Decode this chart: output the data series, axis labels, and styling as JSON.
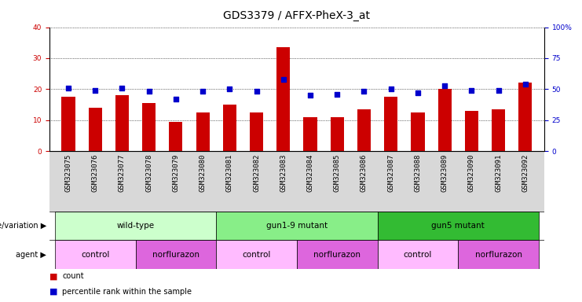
{
  "title": "GDS3379 / AFFX-PheX-3_at",
  "samples": [
    "GSM323075",
    "GSM323076",
    "GSM323077",
    "GSM323078",
    "GSM323079",
    "GSM323080",
    "GSM323081",
    "GSM323082",
    "GSM323083",
    "GSM323084",
    "GSM323085",
    "GSM323086",
    "GSM323087",
    "GSM323088",
    "GSM323089",
    "GSM323090",
    "GSM323091",
    "GSM323092"
  ],
  "counts": [
    17.5,
    14.0,
    18.0,
    15.5,
    9.5,
    12.5,
    15.0,
    12.5,
    33.5,
    11.0,
    11.0,
    13.5,
    17.5,
    12.5,
    20.0,
    13.0,
    13.5,
    22.0
  ],
  "percentile": [
    51,
    49,
    51,
    48,
    42,
    48,
    50,
    48,
    58,
    45,
    46,
    48,
    50,
    47,
    53,
    49,
    49,
    54
  ],
  "ylim_left": [
    0,
    40
  ],
  "ylim_right": [
    0,
    100
  ],
  "yticks_left": [
    0,
    10,
    20,
    30,
    40
  ],
  "yticks_right": [
    0,
    25,
    50,
    75,
    100
  ],
  "bar_color": "#cc0000",
  "dot_color": "#0000cc",
  "grid_color": "#000000",
  "genotype_groups": [
    {
      "label": "wild-type",
      "start": 0,
      "end": 6,
      "color": "#ccffcc"
    },
    {
      "label": "gun1-9 mutant",
      "start": 6,
      "end": 12,
      "color": "#88ee88"
    },
    {
      "label": "gun5 mutant",
      "start": 12,
      "end": 18,
      "color": "#33bb33"
    }
  ],
  "agent_groups": [
    {
      "label": "control",
      "start": 0,
      "end": 3,
      "color": "#ffbbff"
    },
    {
      "label": "norflurazon",
      "start": 3,
      "end": 6,
      "color": "#dd66dd"
    },
    {
      "label": "control",
      "start": 6,
      "end": 9,
      "color": "#ffbbff"
    },
    {
      "label": "norflurazon",
      "start": 9,
      "end": 12,
      "color": "#dd66dd"
    },
    {
      "label": "control",
      "start": 12,
      "end": 15,
      "color": "#ffbbff"
    },
    {
      "label": "norflurazon",
      "start": 15,
      "end": 18,
      "color": "#dd66dd"
    }
  ],
  "legend_count_color": "#cc0000",
  "legend_dot_color": "#0000cc",
  "title_fontsize": 10,
  "tick_fontsize": 6.5,
  "annot_fontsize": 7.5
}
